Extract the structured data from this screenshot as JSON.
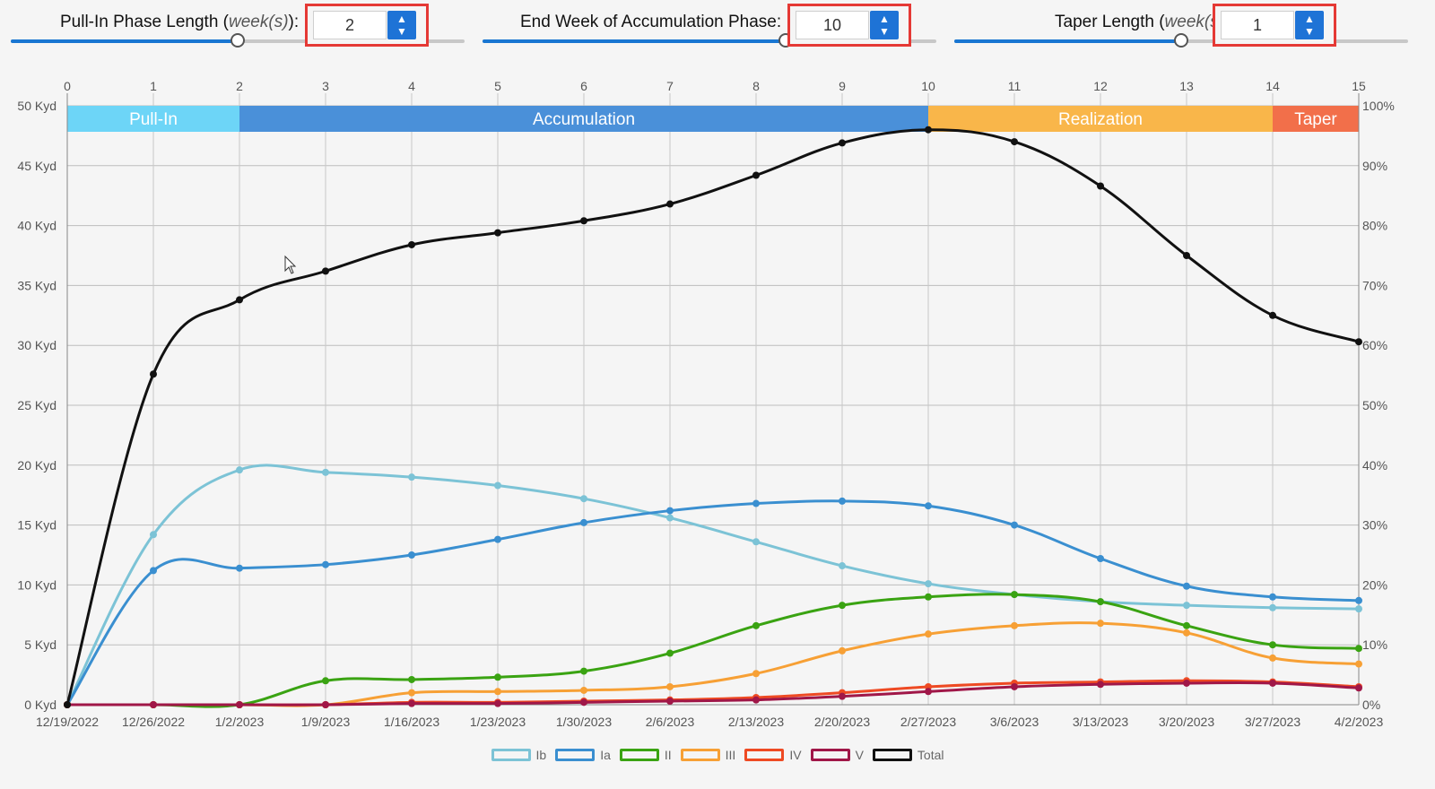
{
  "controls": {
    "pull_in": {
      "label_prefix": "Pull-In Phase Length (",
      "label_unit": "week(s)",
      "label_suffix": "):",
      "value": "2",
      "slider_fraction": 0.5
    },
    "accumulation_end": {
      "label": "End Week of Accumulation Phase:",
      "value": "10",
      "slider_fraction": 0.667
    },
    "taper": {
      "label_prefix": "Taper Length (",
      "label_unit": "week(s)",
      "label_suffix": ")",
      "value": "1",
      "slider_fraction": 0.5
    }
  },
  "colors": {
    "slider_fill": "#1976d2",
    "highlight_box": "#e53935",
    "spinner": "#1e73d6"
  },
  "chart_data": {
    "type": "line",
    "x_top_ticks": [
      "0",
      "1",
      "2",
      "3",
      "4",
      "5",
      "6",
      "7",
      "8",
      "9",
      "10",
      "11",
      "12",
      "13",
      "14",
      "15"
    ],
    "x_bottom_ticks": [
      "12/19/2022",
      "12/26/2022",
      "1/2/2023",
      "1/9/2023",
      "1/16/2023",
      "1/23/2023",
      "1/30/2023",
      "2/6/2023",
      "2/13/2023",
      "2/20/2023",
      "2/27/2023",
      "3/6/2023",
      "3/13/2023",
      "3/20/2023",
      "3/27/2023",
      "4/2/2023"
    ],
    "y_left_ticks": [
      "0 Kyd",
      "5 Kyd",
      "10 Kyd",
      "15 Kyd",
      "20 Kyd",
      "25 Kyd",
      "30 Kyd",
      "35 Kyd",
      "40 Kyd",
      "45 Kyd",
      "50 Kyd"
    ],
    "y_right_ticks": [
      "0%",
      "10%",
      "20%",
      "30%",
      "40%",
      "50%",
      "60%",
      "70%",
      "80%",
      "90%",
      "100%"
    ],
    "ylim": [
      0,
      50
    ],
    "xlim": [
      0,
      15
    ],
    "grid": true,
    "legend_position": "bottom",
    "phases": [
      {
        "name": "Pull-In",
        "start": 0,
        "end": 2,
        "color": "#6dd5f7"
      },
      {
        "name": "Accumulation",
        "start": 2,
        "end": 10,
        "color": "#4a90d9"
      },
      {
        "name": "Realization",
        "start": 10,
        "end": 14,
        "color": "#f9b64a"
      },
      {
        "name": "Taper",
        "start": 14,
        "end": 15,
        "color": "#f26f4a"
      }
    ],
    "series": [
      {
        "name": "Ib",
        "color": "#7cc3d6",
        "values": [
          0,
          14.2,
          19.6,
          19.4,
          19.0,
          18.3,
          17.2,
          15.6,
          13.6,
          11.6,
          10.1,
          9.2,
          8.6,
          8.3,
          8.1,
          8.0
        ]
      },
      {
        "name": "Ia",
        "color": "#3a8fd0",
        "values": [
          0,
          11.2,
          11.4,
          11.7,
          12.5,
          13.8,
          15.2,
          16.2,
          16.8,
          17.0,
          16.6,
          15.0,
          12.2,
          9.9,
          9.0,
          8.7
        ]
      },
      {
        "name": "II",
        "color": "#3aa312",
        "values": [
          0,
          0,
          0,
          2.0,
          2.1,
          2.3,
          2.8,
          4.3,
          6.6,
          8.3,
          9.0,
          9.2,
          8.6,
          6.6,
          5.0,
          4.7
        ]
      },
      {
        "name": "III",
        "color": "#f7a035",
        "values": [
          0,
          0,
          0,
          0,
          1.0,
          1.1,
          1.2,
          1.5,
          2.6,
          4.5,
          5.9,
          6.6,
          6.8,
          6.0,
          3.9,
          3.4
        ]
      },
      {
        "name": "IV",
        "color": "#ee4a23",
        "values": [
          0,
          0,
          0,
          0,
          0.2,
          0.2,
          0.3,
          0.4,
          0.6,
          1.0,
          1.5,
          1.8,
          1.9,
          2.0,
          1.9,
          1.5
        ]
      },
      {
        "name": "V",
        "color": "#a01748",
        "values": [
          0,
          0,
          0,
          0,
          0.1,
          0.1,
          0.2,
          0.3,
          0.4,
          0.7,
          1.1,
          1.5,
          1.7,
          1.8,
          1.8,
          1.4
        ]
      },
      {
        "name": "Total",
        "color": "#111111",
        "values": [
          0,
          27.6,
          33.8,
          36.2,
          38.4,
          39.4,
          40.4,
          41.8,
          44.2,
          46.9,
          48.0,
          47.0,
          43.3,
          37.5,
          32.5,
          30.3
        ]
      }
    ]
  }
}
